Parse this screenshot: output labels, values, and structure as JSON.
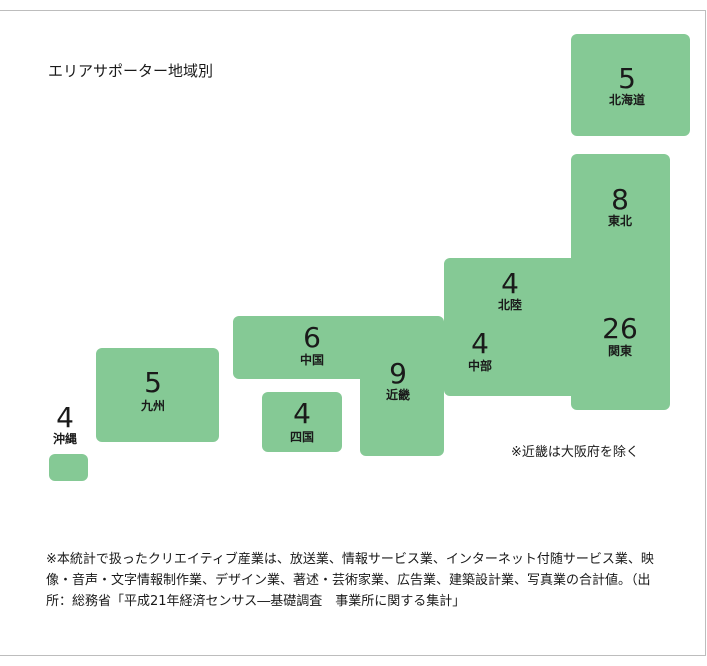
{
  "title": "エリアサポーター地域別",
  "regions": [
    {
      "id": "hokkaido",
      "name": "北海道",
      "count": "5"
    },
    {
      "id": "tohoku",
      "name": "東北",
      "count": "8"
    },
    {
      "id": "kanto",
      "name": "関東",
      "count": "26"
    },
    {
      "id": "hokuriku",
      "name": "北陸",
      "count": "4"
    },
    {
      "id": "chubu",
      "name": "中部",
      "count": "4"
    },
    {
      "id": "kinki",
      "name": "近畿",
      "count": "9"
    },
    {
      "id": "chugoku",
      "name": "中国",
      "count": "6"
    },
    {
      "id": "shikoku",
      "name": "四国",
      "count": "4"
    },
    {
      "id": "kyushu",
      "name": "九州",
      "count": "5"
    },
    {
      "id": "okinawa",
      "name": "沖縄",
      "count": "4"
    }
  ],
  "kinki_note": "※近畿は大阪府を除く",
  "footnote": "※本統計で扱ったクリエイティブ産業は、放送業、情報サービス業、インターネット付随サービス業、映像・音声・文字情報制作業、デザイン業、著述・芸術家業、広告業、建築設計業、写真業の合計値。（出所：総務省「平成21年経済センサス―基礎調査　事業所に関する集計」",
  "colors": {
    "region_fill": "#85c995",
    "frame_border": "#bdbdbd"
  }
}
